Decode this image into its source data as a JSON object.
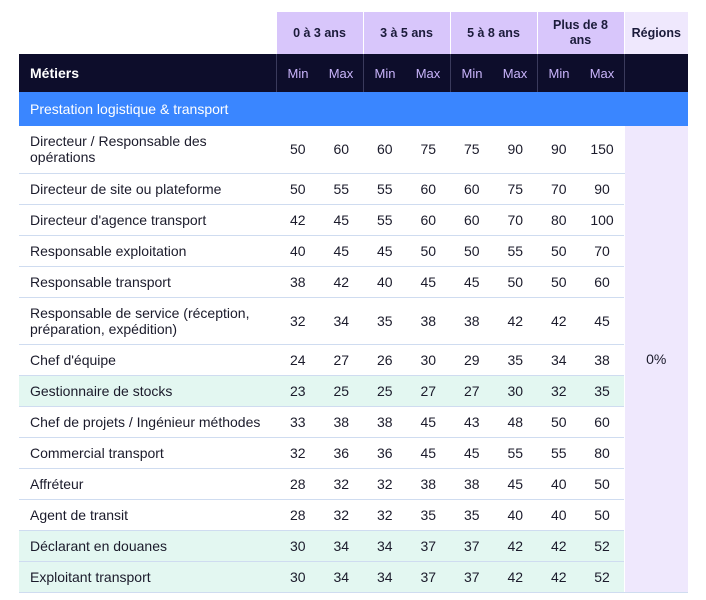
{
  "table": {
    "period_headers": [
      "0 à 3 ans",
      "3 à 5 ans",
      "5 à 8 ans",
      "Plus de 8 ans"
    ],
    "regions_header": "Régions",
    "metiers_header": "Métiers",
    "min_label": "Min",
    "max_label": "Max",
    "section_title": "Prestation logistique & transport",
    "regions_value": "0%",
    "rows": [
      {
        "label": "Directeur / Responsable des opérations",
        "values": [
          "50",
          "60",
          "60",
          "75",
          "75",
          "90",
          "90",
          "150"
        ],
        "highlight": false
      },
      {
        "label": "Directeur de site ou plateforme",
        "values": [
          "50",
          "55",
          "55",
          "60",
          "60",
          "75",
          "70",
          "90"
        ],
        "highlight": false
      },
      {
        "label": "Directeur d'agence transport",
        "values": [
          "42",
          "45",
          "55",
          "60",
          "60",
          "70",
          "80",
          "100"
        ],
        "highlight": false
      },
      {
        "label": "Responsable exploitation",
        "values": [
          "40",
          "45",
          "45",
          "50",
          "50",
          "55",
          "50",
          "70"
        ],
        "highlight": false
      },
      {
        "label": "Responsable transport",
        "values": [
          "38",
          "42",
          "40",
          "45",
          "45",
          "50",
          "50",
          "60"
        ],
        "highlight": false
      },
      {
        "label": "Responsable de service (réception, préparation, expédition)",
        "values": [
          "32",
          "34",
          "35",
          "38",
          "38",
          "42",
          "42",
          "45"
        ],
        "highlight": false
      },
      {
        "label": "Chef d'équipe",
        "values": [
          "24",
          "27",
          "26",
          "30",
          "29",
          "35",
          "34",
          "38"
        ],
        "highlight": false
      },
      {
        "label": "Gestionnaire de stocks",
        "values": [
          "23",
          "25",
          "25",
          "27",
          "27",
          "30",
          "32",
          "35"
        ],
        "highlight": true
      },
      {
        "label": "Chef de projets / Ingénieur méthodes",
        "values": [
          "33",
          "38",
          "38",
          "45",
          "43",
          "48",
          "50",
          "60"
        ],
        "highlight": false
      },
      {
        "label": "Commercial transport",
        "values": [
          "32",
          "36",
          "36",
          "45",
          "45",
          "55",
          "55",
          "80"
        ],
        "highlight": false
      },
      {
        "label": "Affréteur",
        "values": [
          "28",
          "32",
          "32",
          "38",
          "38",
          "45",
          "40",
          "50"
        ],
        "highlight": false
      },
      {
        "label": "Agent de transit",
        "values": [
          "28",
          "32",
          "32",
          "35",
          "35",
          "40",
          "40",
          "50"
        ],
        "highlight": false
      },
      {
        "label": "Déclarant en douanes",
        "values": [
          "30",
          "34",
          "34",
          "37",
          "37",
          "42",
          "42",
          "52"
        ],
        "highlight": true
      },
      {
        "label": "Exploitant transport",
        "values": [
          "30",
          "34",
          "34",
          "37",
          "37",
          "42",
          "42",
          "52"
        ],
        "highlight": true
      }
    ]
  }
}
